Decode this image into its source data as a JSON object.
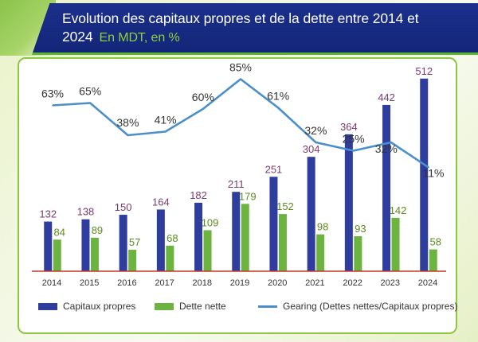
{
  "title": {
    "main": "Evolution des capitaux propres et de la dette entre 2014 et 2024",
    "sub": "En MDT, en %"
  },
  "colors": {
    "capitaux": "#2e3d9e",
    "dette": "#6db33f",
    "gearing": "#4a8fc9",
    "capitaux_label": "#7b3a6e",
    "dette_label": "#5a8a1e",
    "gearing_label": "#333333",
    "axis": "#c0392b"
  },
  "legend": [
    {
      "label": "Capitaux propres",
      "type": "bar",
      "color": "#2e3d9e"
    },
    {
      "label": "Dette nette",
      "type": "bar",
      "color": "#6db33f"
    },
    {
      "label": "Gearing (Dettes nettes/Capitaux propres)",
      "type": "line",
      "color": "#4a8fc9"
    }
  ],
  "chart_data": {
    "type": "bar",
    "categories": [
      "2014",
      "2015",
      "2016",
      "2017",
      "2018",
      "2019",
      "2020",
      "2021",
      "2022",
      "2023",
      "2024"
    ],
    "series": [
      {
        "name": "Capitaux propres",
        "type": "bar",
        "values": [
          132,
          138,
          150,
          164,
          182,
          211,
          251,
          304,
          364,
          442,
          512
        ]
      },
      {
        "name": "Dette nette",
        "type": "bar",
        "values": [
          84,
          89,
          57,
          68,
          109,
          179,
          152,
          98,
          93,
          142,
          58
        ]
      },
      {
        "name": "Gearing (Dettes nettes/Capitaux propres)",
        "type": "line",
        "unit": "%",
        "values": [
          63,
          65,
          38,
          41,
          60,
          85,
          61,
          32,
          25,
          32,
          11
        ]
      }
    ],
    "gearing_labels": [
      "63%",
      "65%",
      "38%",
      "41%",
      "60%",
      "85%",
      "61%",
      "32%",
      "25%",
      "32%",
      "11%"
    ],
    "legend_position": "bottom",
    "grid": false
  }
}
